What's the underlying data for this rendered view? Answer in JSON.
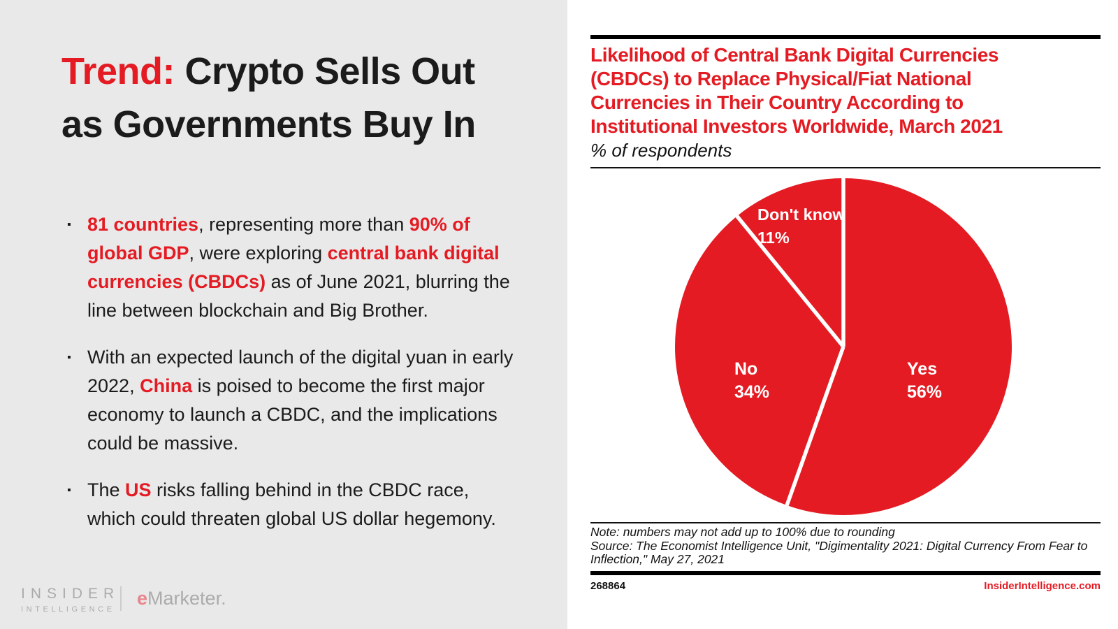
{
  "colors": {
    "brand_red": "#e41b23",
    "left_panel_bg": "#e9e9e9",
    "card_bg": "#ffffff",
    "pie_label_white": "#ffffff",
    "logo_gray": "#ababab",
    "emarketer_e_red": "#e7868d"
  },
  "slide": {
    "title_lines": [
      {
        "segments": [
          {
            "t": "Trend:",
            "hl": true
          },
          {
            "t": " Crypto Sells Out",
            "hl": false
          }
        ]
      },
      {
        "segments": [
          {
            "t": "as Governments Buy In",
            "hl": false
          }
        ]
      }
    ],
    "bullets": [
      {
        "segments": [
          {
            "t": "81 countries",
            "hl": true
          },
          {
            "t": ", representing more than ",
            "hl": false
          },
          {
            "t": "90% of global GDP",
            "hl": true
          },
          {
            "t": ", were exploring ",
            "hl": false
          },
          {
            "t": "central bank digital currencies (CBDCs)",
            "hl": true
          },
          {
            "t": " as of June 2021, blurring the line between blockchain and Big Brother.",
            "hl": false
          }
        ]
      },
      {
        "segments": [
          {
            "t": "With an expected launch of the digital yuan in early 2022, ",
            "hl": false
          },
          {
            "t": "China",
            "hl": true
          },
          {
            "t": " is poised to become the first major economy to launch a CBDC, and the implications could be massive.",
            "hl": false
          }
        ]
      },
      {
        "segments": [
          {
            "t": "The ",
            "hl": false
          },
          {
            "t": "US",
            "hl": true
          },
          {
            "t": " risks falling behind in the CBDC race, which could threaten global US dollar hegemony.",
            "hl": false
          }
        ]
      }
    ],
    "bullet_glyph": "▪",
    "footer": {
      "insider_line1": "INSIDER",
      "insider_line2": "INTELLIGENCE",
      "emarketer_e": "e",
      "emarketer_rest": "Marketer."
    }
  },
  "chart": {
    "title_lines": [
      "Likelihood of Central Bank Digital Currencies",
      "(CBDCs) to Replace Physical/Fiat National",
      "Currencies in Their Country According to",
      "Institutional Investors Worldwide, March 2021"
    ],
    "subtitle": "% of respondents",
    "note": "Note: numbers may not add up to 100% due to rounding",
    "source": "Source: The Economist Intelligence Unit, \"Digimentality 2021: Digital Currency From Fear to Inflection,\" May 27, 2021",
    "chart_id": "268864",
    "website": "InsiderIntelligence.com"
  },
  "chart_data": {
    "type": "pie",
    "title": "Likelihood of Central Bank Digital Currencies (CBDCs) to Replace Physical/Fiat National Currencies in Their Country According to Institutional Investors Worldwide, March 2021",
    "unit": "% of respondents",
    "slices": [
      {
        "label": "Yes",
        "value": 56,
        "display": "56%"
      },
      {
        "label": "No",
        "value": 34,
        "display": "34%"
      },
      {
        "label": "Don't know",
        "value": 11,
        "display": "11%"
      }
    ],
    "start_angle_deg": 0,
    "direction": "clockwise",
    "slice_color": "#e41b23",
    "divider_color": "#ffffff",
    "label_color": "#ffffff",
    "note": "values total 101 due to rounding"
  }
}
